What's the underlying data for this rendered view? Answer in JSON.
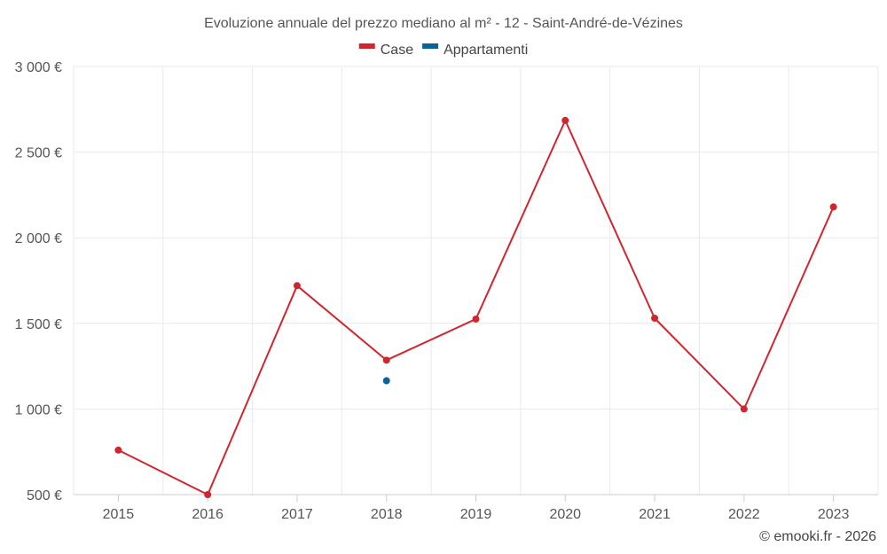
{
  "chart_data": {
    "type": "line",
    "title": "Evoluzione annuale del prezzo mediano al m² - 12 - Saint-André-de-Vézines",
    "xlabel": "",
    "ylabel": "",
    "categories": [
      "2015",
      "2016",
      "2017",
      "2018",
      "2019",
      "2020",
      "2021",
      "2022",
      "2023"
    ],
    "ylim": [
      500,
      3000
    ],
    "yticks": [
      500,
      1000,
      1500,
      2000,
      2500,
      3000
    ],
    "ytick_labels": [
      "500 €",
      "1 000 €",
      "1 500 €",
      "2 000 €",
      "2 500 €",
      "3 000 €"
    ],
    "grid": true,
    "legend_position": "top-center",
    "series": [
      {
        "name": "Case",
        "color": "#d0262d",
        "values": [
          760,
          500,
          1720,
          1285,
          1525,
          2685,
          1530,
          1000,
          2180
        ]
      },
      {
        "name": "Appartamenti",
        "color": "#0b6199",
        "values": [
          null,
          null,
          null,
          1165,
          null,
          null,
          null,
          null,
          null
        ]
      }
    ]
  },
  "credits": "© emooki.fr - 2026"
}
